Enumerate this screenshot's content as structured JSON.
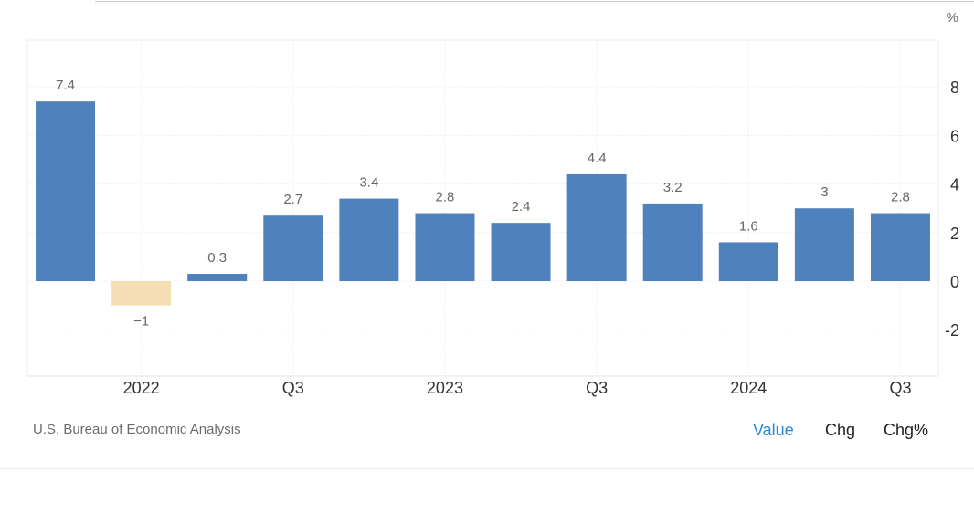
{
  "chart_data": {
    "type": "bar",
    "unit_label": "%",
    "ylim": [
      -4,
      10
    ],
    "y_ticks": [
      -2,
      0,
      2,
      4,
      6,
      8
    ],
    "y_axis_side": "right",
    "grid": true,
    "x_tick_labels": [
      {
        "label": "2022",
        "index": 1.5
      },
      {
        "label": "Q3",
        "index": 3.5
      },
      {
        "label": "2023",
        "index": 5.5
      },
      {
        "label": "Q3",
        "index": 7.5
      },
      {
        "label": "2024",
        "index": 9.5
      },
      {
        "label": "Q3",
        "index": 11.5
      }
    ],
    "values": [
      7.4,
      -1,
      0.3,
      2.7,
      3.4,
      2.8,
      2.4,
      4.4,
      3.2,
      1.6,
      3,
      2.8
    ],
    "value_labels": [
      "7.4",
      "−1",
      "0.3",
      "2.7",
      "3.4",
      "2.8",
      "2.4",
      "4.4",
      "3.2",
      "1.6",
      "3",
      "2.8"
    ],
    "colors": {
      "positive": "#4f81bd",
      "negative": "#f5deb3"
    }
  },
  "source": "U.S. Bureau of Economic Analysis",
  "toggles": [
    {
      "label": "Value",
      "active": true
    },
    {
      "label": "Chg",
      "active": false
    },
    {
      "label": "Chg%",
      "active": false
    }
  ]
}
